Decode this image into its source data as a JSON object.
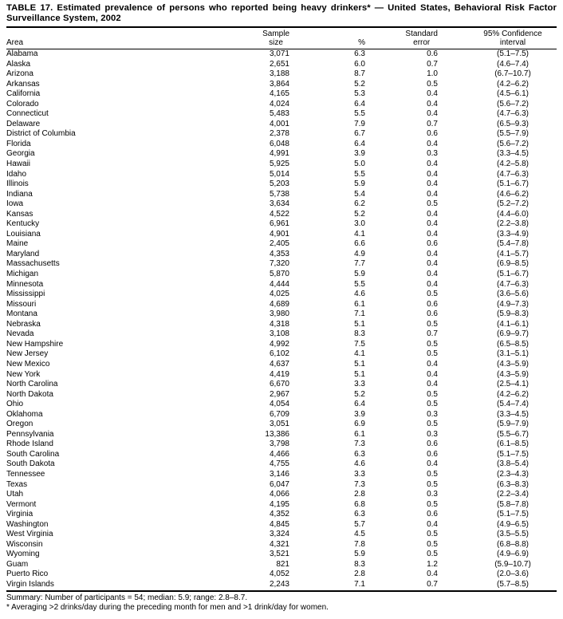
{
  "header": {
    "title_line1": "TABLE 17. Estimated prevalence of persons who reported being heavy drinkers* — United States, Behavioral Risk Factor",
    "title_line2": "Surveillance System, 2002"
  },
  "columns": {
    "area": "Area",
    "sample_size": "Sample\nsize",
    "percent": "%",
    "standard_error": "Standard\nerror",
    "confidence_interval": "95% Confidence\ninterval"
  },
  "rows": [
    {
      "area": "Alabama",
      "sample": "3,071",
      "pct": "6.3",
      "se": "0.6",
      "ci": "(5.1–7.5)"
    },
    {
      "area": "Alaska",
      "sample": "2,651",
      "pct": "6.0",
      "se": "0.7",
      "ci": "(4.6–7.4)"
    },
    {
      "area": "Arizona",
      "sample": "3,188",
      "pct": "8.7",
      "se": "1.0",
      "ci": "(6.7–10.7)"
    },
    {
      "area": "Arkansas",
      "sample": "3,864",
      "pct": "5.2",
      "se": "0.5",
      "ci": "(4.2–6.2)"
    },
    {
      "area": "California",
      "sample": "4,165",
      "pct": "5.3",
      "se": "0.4",
      "ci": "(4.5–6.1)"
    },
    {
      "area": "Colorado",
      "sample": "4,024",
      "pct": "6.4",
      "se": "0.4",
      "ci": "(5.6–7.2)"
    },
    {
      "area": "Connecticut",
      "sample": "5,483",
      "pct": "5.5",
      "se": "0.4",
      "ci": "(4.7–6.3)"
    },
    {
      "area": "Delaware",
      "sample": "4,001",
      "pct": "7.9",
      "se": "0.7",
      "ci": "(6.5–9.3)"
    },
    {
      "area": "District of Columbia",
      "sample": "2,378",
      "pct": "6.7",
      "se": "0.6",
      "ci": "(5.5–7.9)"
    },
    {
      "area": "Florida",
      "sample": "6,048",
      "pct": "6.4",
      "se": "0.4",
      "ci": "(5.6–7.2)"
    },
    {
      "area": "Georgia",
      "sample": "4,991",
      "pct": "3.9",
      "se": "0.3",
      "ci": "(3.3–4.5)"
    },
    {
      "area": "Hawaii",
      "sample": "5,925",
      "pct": "5.0",
      "se": "0.4",
      "ci": "(4.2–5.8)"
    },
    {
      "area": "Idaho",
      "sample": "5,014",
      "pct": "5.5",
      "se": "0.4",
      "ci": "(4.7–6.3)"
    },
    {
      "area": "Illinois",
      "sample": "5,203",
      "pct": "5.9",
      "se": "0.4",
      "ci": "(5.1–6.7)"
    },
    {
      "area": "Indiana",
      "sample": "5,738",
      "pct": "5.4",
      "se": "0.4",
      "ci": "(4.6–6.2)"
    },
    {
      "area": "Iowa",
      "sample": "3,634",
      "pct": "6.2",
      "se": "0.5",
      "ci": "(5.2–7.2)"
    },
    {
      "area": "Kansas",
      "sample": "4,522",
      "pct": "5.2",
      "se": "0.4",
      "ci": "(4.4–6.0)"
    },
    {
      "area": "Kentucky",
      "sample": "6,961",
      "pct": "3.0",
      "se": "0.4",
      "ci": "(2.2–3.8)"
    },
    {
      "area": "Louisiana",
      "sample": "4,901",
      "pct": "4.1",
      "se": "0.4",
      "ci": "(3.3–4.9)"
    },
    {
      "area": "Maine",
      "sample": "2,405",
      "pct": "6.6",
      "se": "0.6",
      "ci": "(5.4–7.8)"
    },
    {
      "area": "Maryland",
      "sample": "4,353",
      "pct": "4.9",
      "se": "0.4",
      "ci": "(4.1–5.7)"
    },
    {
      "area": "Massachusetts",
      "sample": "7,320",
      "pct": "7.7",
      "se": "0.4",
      "ci": "(6.9–8.5)"
    },
    {
      "area": "Michigan",
      "sample": "5,870",
      "pct": "5.9",
      "se": "0.4",
      "ci": "(5.1–6.7)"
    },
    {
      "area": "Minnesota",
      "sample": "4,444",
      "pct": "5.5",
      "se": "0.4",
      "ci": "(4.7–6.3)"
    },
    {
      "area": "Mississippi",
      "sample": "4,025",
      "pct": "4.6",
      "se": "0.5",
      "ci": "(3.6–5.6)"
    },
    {
      "area": "Missouri",
      "sample": "4,689",
      "pct": "6.1",
      "se": "0.6",
      "ci": "(4.9–7.3)"
    },
    {
      "area": "Montana",
      "sample": "3,980",
      "pct": "7.1",
      "se": "0.6",
      "ci": "(5.9–8.3)"
    },
    {
      "area": "Nebraska",
      "sample": "4,318",
      "pct": "5.1",
      "se": "0.5",
      "ci": "(4.1–6.1)"
    },
    {
      "area": "Nevada",
      "sample": "3,108",
      "pct": "8.3",
      "se": "0.7",
      "ci": "(6.9–9.7)"
    },
    {
      "area": "New Hampshire",
      "sample": "4,992",
      "pct": "7.5",
      "se": "0.5",
      "ci": "(6.5–8.5)"
    },
    {
      "area": "New Jersey",
      "sample": "6,102",
      "pct": "4.1",
      "se": "0.5",
      "ci": "(3.1–5.1)"
    },
    {
      "area": "New Mexico",
      "sample": "4,637",
      "pct": "5.1",
      "se": "0.4",
      "ci": "(4.3–5.9)"
    },
    {
      "area": "New York",
      "sample": "4,419",
      "pct": "5.1",
      "se": "0.4",
      "ci": "(4.3–5.9)"
    },
    {
      "area": "North Carolina",
      "sample": "6,670",
      "pct": "3.3",
      "se": "0.4",
      "ci": "(2.5–4.1)"
    },
    {
      "area": "North Dakota",
      "sample": "2,967",
      "pct": "5.2",
      "se": "0.5",
      "ci": "(4.2–6.2)"
    },
    {
      "area": "Ohio",
      "sample": "4,054",
      "pct": "6.4",
      "se": "0.5",
      "ci": "(5.4–7.4)"
    },
    {
      "area": "Oklahoma",
      "sample": "6,709",
      "pct": "3.9",
      "se": "0.3",
      "ci": "(3.3–4.5)"
    },
    {
      "area": "Oregon",
      "sample": "3,051",
      "pct": "6.9",
      "se": "0.5",
      "ci": "(5.9–7.9)"
    },
    {
      "area": "Pennsylvania",
      "sample": "13,386",
      "pct": "6.1",
      "se": "0.3",
      "ci": "(5.5–6.7)"
    },
    {
      "area": "Rhode Island",
      "sample": "3,798",
      "pct": "7.3",
      "se": "0.6",
      "ci": "(6.1–8.5)"
    },
    {
      "area": "South Carolina",
      "sample": "4,466",
      "pct": "6.3",
      "se": "0.6",
      "ci": "(5.1–7.5)"
    },
    {
      "area": "South Dakota",
      "sample": "4,755",
      "pct": "4.6",
      "se": "0.4",
      "ci": "(3.8–5.4)"
    },
    {
      "area": "Tennessee",
      "sample": "3,146",
      "pct": "3.3",
      "se": "0.5",
      "ci": "(2.3–4.3)"
    },
    {
      "area": "Texas",
      "sample": "6,047",
      "pct": "7.3",
      "se": "0.5",
      "ci": "(6.3–8.3)"
    },
    {
      "area": "Utah",
      "sample": "4,066",
      "pct": "2.8",
      "se": "0.3",
      "ci": "(2.2–3.4)"
    },
    {
      "area": "Vermont",
      "sample": "4,195",
      "pct": "6.8",
      "se": "0.5",
      "ci": "(5.8–7.8)"
    },
    {
      "area": "Virginia",
      "sample": "4,352",
      "pct": "6.3",
      "se": "0.6",
      "ci": "(5.1–7.5)"
    },
    {
      "area": "Washington",
      "sample": "4,845",
      "pct": "5.7",
      "se": "0.4",
      "ci": "(4.9–6.5)"
    },
    {
      "area": "West Virginia",
      "sample": "3,324",
      "pct": "4.5",
      "se": "0.5",
      "ci": "(3.5–5.5)"
    },
    {
      "area": "Wisconsin",
      "sample": "4,321",
      "pct": "7.8",
      "se": "0.5",
      "ci": "(6.8–8.8)"
    },
    {
      "area": "Wyoming",
      "sample": "3,521",
      "pct": "5.9",
      "se": "0.5",
      "ci": "(4.9–6.9)"
    },
    {
      "area": "Guam",
      "sample": "821",
      "pct": "8.3",
      "se": "1.2",
      "ci": "(5.9–10.7)"
    },
    {
      "area": "Puerto Rico",
      "sample": "4,052",
      "pct": "2.8",
      "se": "0.4",
      "ci": "(2.0–3.6)"
    },
    {
      "area": "Virgin Islands",
      "sample": "2,243",
      "pct": "7.1",
      "se": "0.7",
      "ci": "(5.7–8.5)"
    }
  ],
  "footer": {
    "summary": "Summary: Number of participants = 54; median: 5.9; range: 2.8–8.7.",
    "footnote": "* Averaging >2 drinks/day during the preceding month for men and >1 drink/day for women."
  },
  "colors": {
    "text": "#000000",
    "background": "#ffffff",
    "rule": "#000000"
  }
}
